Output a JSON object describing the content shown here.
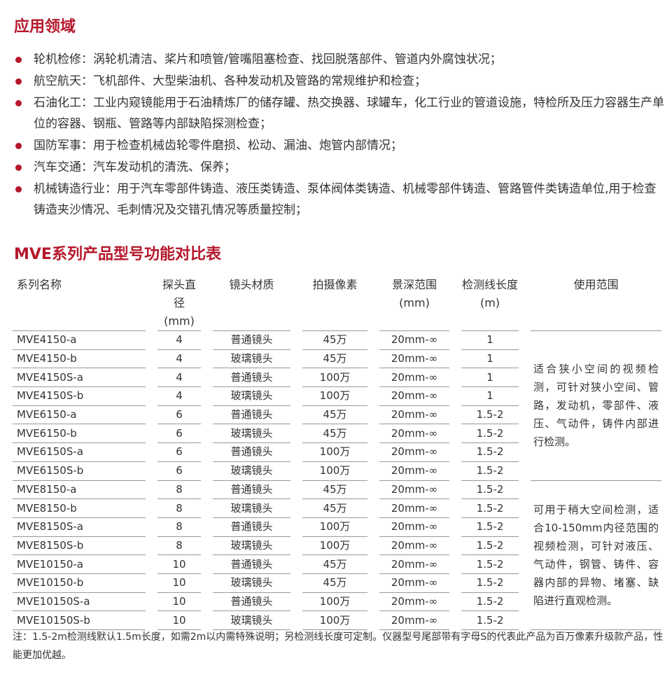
{
  "section1": {
    "title": "应用领域",
    "items": [
      "轮机检修：涡轮机清洁、桨片和喷管/管嘴阻塞检查、找回脱落部件、管道内外腐蚀状况；",
      "航空航天：飞机部件、大型柴油机、各种发动机及管路的常规维护和检查；",
      "石油化工：工业内窥镜能用于石油精炼厂的储存罐、热交换器、球罐车，化工行业的管道设施，特检所及压力容器生产单位的容器、钢瓶、管路等内部缺陷探测检查；",
      "国防军事：用于检查机械齿轮零件磨损、松动、漏油、炮管内部情况；",
      "汽车交通：汽车发动机的清洗、保养；",
      "机械铸造行业：用于汽车零部件铸造、液压类铸造、泵体阀体类铸造、机械零部件铸造、管路管件类铸造单位,用于检查铸造夹沙情况、毛刺情况及交错孔情况等质量控制；"
    ]
  },
  "section2": {
    "title": "MVE系列产品型号功能对比表",
    "headers": [
      [
        "系列名称",
        ""
      ],
      [
        "探头直径",
        "(mm)"
      ],
      [
        "镜头材质",
        ""
      ],
      [
        "拍摄像素",
        ""
      ],
      [
        "景深范围",
        "(mm)"
      ],
      [
        "检测线长度",
        "(m)"
      ],
      [
        "使用范围",
        ""
      ]
    ],
    "rows": [
      [
        "MVE4150-a",
        "4",
        "普通镜头",
        "45万",
        "20mm-∞",
        "1"
      ],
      [
        "MVE4150-b",
        "4",
        "玻璃镜头",
        "45万",
        "20mm-∞",
        "1"
      ],
      [
        "MVE4150S-a",
        "4",
        "普通镜头",
        "100万",
        "20mm-∞",
        "1"
      ],
      [
        "MVE4150S-b",
        "4",
        "玻璃镜头",
        "100万",
        "20mm-∞",
        "1"
      ],
      [
        "MVE6150-a",
        "6",
        "普通镜头",
        "45万",
        "20mm-∞",
        "1.5-2"
      ],
      [
        "MVE6150-b",
        "6",
        "玻璃镜头",
        "45万",
        "20mm-∞",
        "1.5-2"
      ],
      [
        "MVE6150S-a",
        "6",
        "普通镜头",
        "100万",
        "20mm-∞",
        "1.5-2"
      ],
      [
        "MVE6150S-b",
        "6",
        "玻璃镜头",
        "100万",
        "20mm-∞",
        "1.5-2"
      ],
      [
        "MVE8150-a",
        "8",
        "普通镜头",
        "45万",
        "20mm-∞",
        "1.5-2"
      ],
      [
        "MVE8150-b",
        "8",
        "玻璃镜头",
        "45万",
        "20mm-∞",
        "1.5-2"
      ],
      [
        "MVE8150S-a",
        "8",
        "普通镜头",
        "100万",
        "20mm-∞",
        "1.5-2"
      ],
      [
        "MVE8150S-b",
        "8",
        "玻璃镜头",
        "100万",
        "20mm-∞",
        "1.5-2"
      ],
      [
        "MVE10150-a",
        "10",
        "普通镜头",
        "45万",
        "20mm-∞",
        "1.5-2"
      ],
      [
        "MVE10150-b",
        "10",
        "玻璃镜头",
        "45万",
        "20mm-∞",
        "1.5-2"
      ],
      [
        "MVE10150S-a",
        "10",
        "普通镜头",
        "100万",
        "20mm-∞",
        "1.5-2"
      ],
      [
        "MVE10150S-b",
        "10",
        "玻璃镜头",
        "100万",
        "20mm-∞",
        "1.5-2"
      ]
    ],
    "ranges": [
      "适合狭小空间的视频检测，可针对狭小空间、管路，发动机，零部件、液压、气动件，铸件内部进行检测。",
      "可用于稍大空间检测，适合10-150mm内径范围的视频检测，可针对液压、气动件，钢管、铸件、容器内部的异物、堵塞、缺陷进行直观检测。"
    ],
    "note": "注：1.5-2m检测线默认1.5m长度，如需2m以内需特殊说明；另检测线长度可定制。仪器型号尾部带有字母S的代表此产品为百万像素升级款产品，性能更加优越。"
  },
  "colors": {
    "accent": "#b5172b"
  }
}
